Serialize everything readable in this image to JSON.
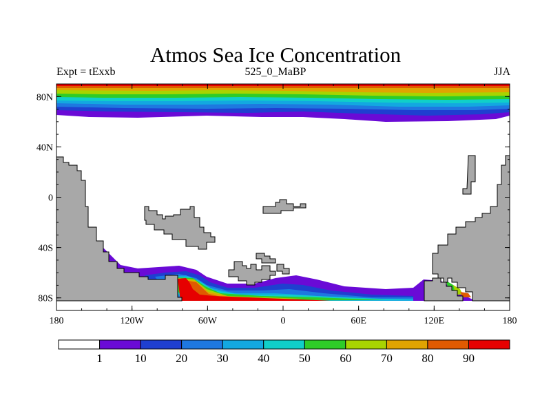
{
  "title": "Atmos Sea Ice Concentration",
  "subtitle_left": "Expt = tExxb",
  "subtitle_center": "525_0_MaBP",
  "subtitle_right": "JJA",
  "lat_ticks": [
    "80N",
    "40N",
    "0",
    "40S",
    "80S"
  ],
  "lat_values": [
    80,
    40,
    0,
    -40,
    -80
  ],
  "lon_ticks": [
    "180",
    "120W",
    "60W",
    "0",
    "60E",
    "120E",
    "180"
  ],
  "lon_values": [
    -180,
    -120,
    -60,
    0,
    60,
    120,
    180
  ],
  "colorbar": {
    "labels": [
      "1",
      "10",
      "20",
      "30",
      "40",
      "50",
      "60",
      "70",
      "80",
      "90"
    ],
    "colors": [
      "#ffffff",
      "#6a0ad6",
      "#1f3fd0",
      "#1e78e0",
      "#13a8e0",
      "#10cfc9",
      "#2ecc28",
      "#a8d400",
      "#e0a400",
      "#e05a00",
      "#e60000"
    ]
  },
  "colors": {
    "land": "#a8a8a8",
    "ocean": "#ffffff"
  }
}
